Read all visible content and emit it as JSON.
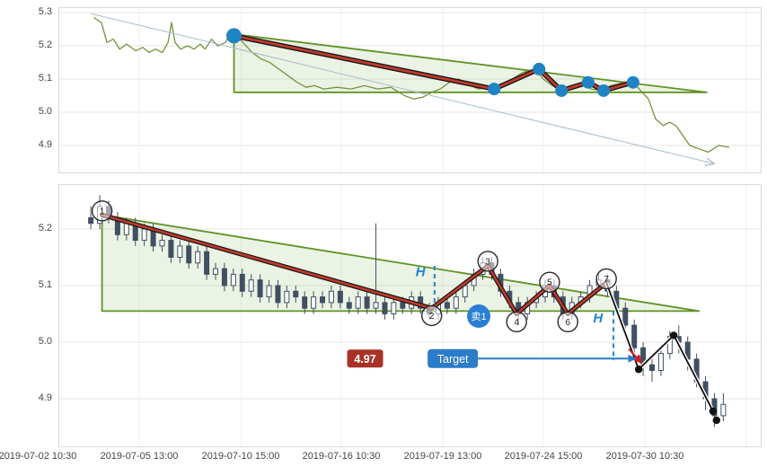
{
  "x_axis_labels": [
    "2019-07-02 10:30",
    "2019-07-05 13:00",
    "2019-07-10 15:00",
    "2019-07-16 10:30",
    "2019-07-19 13:00",
    "2019-07-24 15:00",
    "2019-07-30 10:30"
  ],
  "chart_data": [
    {
      "type": "line",
      "ylim": [
        4.82,
        5.31
      ],
      "yticks": [
        5.3,
        5.2,
        5.1,
        5.0,
        4.9
      ],
      "grid": true,
      "price_line": {
        "color": "#75933a",
        "points": [
          [
            0.049,
            5.285
          ],
          [
            0.06,
            5.27
          ],
          [
            0.068,
            5.21
          ],
          [
            0.077,
            5.22
          ],
          [
            0.086,
            5.19
          ],
          [
            0.096,
            5.205
          ],
          [
            0.109,
            5.185
          ],
          [
            0.119,
            5.195
          ],
          [
            0.128,
            5.18
          ],
          [
            0.137,
            5.19
          ],
          [
            0.147,
            5.18
          ],
          [
            0.155,
            5.21
          ],
          [
            0.16,
            5.27
          ],
          [
            0.165,
            5.21
          ],
          [
            0.173,
            5.19
          ],
          [
            0.183,
            5.2
          ],
          [
            0.192,
            5.19
          ],
          [
            0.201,
            5.205
          ],
          [
            0.208,
            5.19
          ],
          [
            0.217,
            5.22
          ],
          [
            0.226,
            5.2
          ],
          [
            0.237,
            5.21
          ],
          [
            0.244,
            5.24
          ],
          [
            0.252,
            5.23
          ],
          [
            0.262,
            5.21
          ],
          [
            0.275,
            5.18
          ],
          [
            0.288,
            5.16
          ],
          [
            0.3,
            5.15
          ],
          [
            0.313,
            5.13
          ],
          [
            0.326,
            5.11
          ],
          [
            0.339,
            5.09
          ],
          [
            0.352,
            5.075
          ],
          [
            0.364,
            5.08
          ],
          [
            0.377,
            5.07
          ],
          [
            0.396,
            5.075
          ],
          [
            0.416,
            5.07
          ],
          [
            0.435,
            5.08
          ],
          [
            0.454,
            5.07
          ],
          [
            0.473,
            5.075
          ],
          [
            0.492,
            5.05
          ],
          [
            0.505,
            5.04
          ],
          [
            0.518,
            5.045
          ],
          [
            0.531,
            5.06
          ],
          [
            0.543,
            5.07
          ],
          [
            0.556,
            5.09
          ],
          [
            0.569,
            5.1
          ],
          [
            0.582,
            5.085
          ],
          [
            0.597,
            5.07
          ],
          [
            0.614,
            5.075
          ],
          [
            0.63,
            5.08
          ],
          [
            0.646,
            5.1
          ],
          [
            0.661,
            5.12
          ],
          [
            0.678,
            5.13
          ],
          [
            0.69,
            5.1
          ],
          [
            0.703,
            5.08
          ],
          [
            0.716,
            5.065
          ],
          [
            0.729,
            5.08
          ],
          [
            0.746,
            5.09
          ],
          [
            0.758,
            5.07
          ],
          [
            0.771,
            5.065
          ],
          [
            0.786,
            5.08
          ],
          [
            0.806,
            5.09
          ],
          [
            0.818,
            5.09
          ],
          [
            0.831,
            5.06
          ],
          [
            0.84,
            5.04
          ],
          [
            0.85,
            4.98
          ],
          [
            0.861,
            4.96
          ],
          [
            0.87,
            4.97
          ],
          [
            0.879,
            4.96
          ],
          [
            0.889,
            4.93
          ],
          [
            0.899,
            4.9
          ],
          [
            0.912,
            4.89
          ],
          [
            0.925,
            4.88
          ],
          [
            0.94,
            4.9
          ],
          [
            0.955,
            4.895
          ]
        ]
      },
      "descending_triangle": {
        "stroke": "#5f9326",
        "fill": "rgba(130,180,90,0.16)",
        "points": [
          [
            0.249,
            5.235
          ],
          [
            0.923,
            5.06
          ],
          [
            0.249,
            5.06
          ]
        ]
      },
      "trend_arrow": {
        "color": "#a5bccd",
        "from": [
          0.045,
          5.297
        ],
        "to": [
          0.934,
          4.845
        ]
      },
      "zigzag": {
        "color": "#bf3a2b",
        "outline": "#151515",
        "dot_color": "#1f83c4",
        "points": [
          [
            0.249,
            5.23
          ],
          [
            0.62,
            5.07
          ],
          [
            0.684,
            5.13
          ],
          [
            0.716,
            5.065
          ],
          [
            0.754,
            5.09
          ],
          [
            0.776,
            5.065
          ],
          [
            0.818,
            5.09
          ]
        ]
      }
    },
    {
      "type": "candlestick",
      "ylim": [
        4.82,
        5.28
      ],
      "yticks": [
        5.2,
        5.1,
        5.0,
        4.9
      ],
      "grid": true,
      "candle_up_color": "#ffffff",
      "candle_down_color": "#414f63",
      "candle_stroke": "#414f63",
      "candles": {
        "x_start": 0.045,
        "x_step": 0.0127,
        "ohlc": [
          [
            5.22,
            5.24,
            5.2,
            5.21
          ],
          [
            5.21,
            5.26,
            5.2,
            5.24
          ],
          [
            5.24,
            5.25,
            5.21,
            5.22
          ],
          [
            5.22,
            5.23,
            5.18,
            5.19
          ],
          [
            5.19,
            5.22,
            5.18,
            5.21
          ],
          [
            5.21,
            5.22,
            5.17,
            5.18
          ],
          [
            5.18,
            5.21,
            5.17,
            5.2
          ],
          [
            5.2,
            5.21,
            5.16,
            5.17
          ],
          [
            5.17,
            5.19,
            5.16,
            5.18
          ],
          [
            5.18,
            5.19,
            5.14,
            5.15
          ],
          [
            5.15,
            5.18,
            5.14,
            5.17
          ],
          [
            5.17,
            5.18,
            5.13,
            5.14
          ],
          [
            5.14,
            5.17,
            5.13,
            5.16
          ],
          [
            5.16,
            5.17,
            5.11,
            5.12
          ],
          [
            5.12,
            5.14,
            5.11,
            5.13
          ],
          [
            5.13,
            5.14,
            5.09,
            5.1
          ],
          [
            5.1,
            5.13,
            5.09,
            5.12
          ],
          [
            5.12,
            5.13,
            5.08,
            5.09
          ],
          [
            5.09,
            5.12,
            5.08,
            5.11
          ],
          [
            5.11,
            5.12,
            5.07,
            5.08
          ],
          [
            5.08,
            5.11,
            5.07,
            5.1
          ],
          [
            5.1,
            5.11,
            5.06,
            5.07
          ],
          [
            5.07,
            5.1,
            5.06,
            5.09
          ],
          [
            5.09,
            5.1,
            5.07,
            5.08
          ],
          [
            5.08,
            5.09,
            5.05,
            5.06
          ],
          [
            5.06,
            5.09,
            5.05,
            5.08
          ],
          [
            5.08,
            5.09,
            5.06,
            5.07
          ],
          [
            5.07,
            5.1,
            5.06,
            5.09
          ],
          [
            5.09,
            5.1,
            5.06,
            5.07
          ],
          [
            5.07,
            5.08,
            5.05,
            5.06
          ],
          [
            5.06,
            5.09,
            5.05,
            5.08
          ],
          [
            5.08,
            5.09,
            5.05,
            5.06
          ],
          [
            5.06,
            5.21,
            5.05,
            5.07
          ],
          [
            5.07,
            5.08,
            5.04,
            5.05
          ],
          [
            5.05,
            5.08,
            5.04,
            5.07
          ],
          [
            5.07,
            5.08,
            5.05,
            5.06
          ],
          [
            5.06,
            5.09,
            5.05,
            5.08
          ],
          [
            5.08,
            5.09,
            5.05,
            5.06
          ],
          [
            5.06,
            5.07,
            5.04,
            5.05
          ],
          [
            5.05,
            5.08,
            5.04,
            5.07
          ],
          [
            5.07,
            5.08,
            5.05,
            5.06
          ],
          [
            5.06,
            5.09,
            5.05,
            5.08
          ],
          [
            5.08,
            5.11,
            5.07,
            5.1
          ],
          [
            5.1,
            5.13,
            5.09,
            5.12
          ],
          [
            5.12,
            5.15,
            5.11,
            5.14
          ],
          [
            5.14,
            5.15,
            5.11,
            5.12
          ],
          [
            5.12,
            5.13,
            5.08,
            5.09
          ],
          [
            5.09,
            5.1,
            5.06,
            5.07
          ],
          [
            5.07,
            5.08,
            5.03,
            5.05
          ],
          [
            5.05,
            5.08,
            5.04,
            5.07
          ],
          [
            5.07,
            5.09,
            5.06,
            5.08
          ],
          [
            5.08,
            5.11,
            5.07,
            5.1
          ],
          [
            5.1,
            5.11,
            5.07,
            5.08
          ],
          [
            5.08,
            5.09,
            5.04,
            5.05
          ],
          [
            5.05,
            5.08,
            5.04,
            5.07
          ],
          [
            5.07,
            5.09,
            5.06,
            5.08
          ],
          [
            5.08,
            5.11,
            5.07,
            5.1
          ],
          [
            5.1,
            5.12,
            5.09,
            5.11
          ],
          [
            5.11,
            5.12,
            5.08,
            5.09
          ],
          [
            5.09,
            5.1,
            5.05,
            5.06
          ],
          [
            5.06,
            5.07,
            5.02,
            5.03
          ],
          [
            5.03,
            5.04,
            4.98,
            4.99
          ],
          [
            4.99,
            5.0,
            4.94,
            4.96
          ],
          [
            4.96,
            4.98,
            4.93,
            4.95
          ],
          [
            4.95,
            4.99,
            4.94,
            4.98
          ],
          [
            4.98,
            5.02,
            4.97,
            5.01
          ],
          [
            5.01,
            5.03,
            4.98,
            5.0
          ],
          [
            5.0,
            5.01,
            4.95,
            4.97
          ],
          [
            4.97,
            4.98,
            4.92,
            4.93
          ],
          [
            4.93,
            4.94,
            4.88,
            4.9
          ],
          [
            4.9,
            4.91,
            4.85,
            4.87
          ],
          [
            4.87,
            4.91,
            4.86,
            4.89
          ]
        ]
      },
      "descending_triangle": {
        "stroke": "#5f9326",
        "fill": "rgba(130,180,90,0.16)",
        "points": [
          [
            0.061,
            5.225
          ],
          [
            0.912,
            5.055
          ],
          [
            0.061,
            5.055
          ]
        ]
      },
      "zigzag": {
        "color": "#bf3a2b",
        "outline": "#151515",
        "pivots": [
          {
            "n": "1",
            "x": 0.061,
            "price": 5.225,
            "circle_price": 5.232
          },
          {
            "n": "2",
            "x": 0.531,
            "price": 5.06,
            "circle_price": 5.047
          },
          {
            "n": "3",
            "x": 0.611,
            "price": 5.135,
            "circle_price": 5.143
          },
          {
            "n": "4",
            "x": 0.652,
            "price": 5.05,
            "circle_price": 5.036
          },
          {
            "n": "5",
            "x": 0.699,
            "price": 5.1,
            "circle_price": 5.106
          },
          {
            "n": "6",
            "x": 0.725,
            "price": 5.05,
            "circle_price": 5.036
          },
          {
            "n": "7",
            "x": 0.78,
            "price": 5.105,
            "circle_price": 5.112
          }
        ]
      },
      "tail_line": {
        "color": "#111111",
        "outline": "#ffffff",
        "points": [
          [
            0.78,
            5.105
          ],
          [
            0.826,
            4.952
          ],
          [
            0.876,
            5.012
          ],
          [
            0.932,
            4.878
          ]
        ],
        "dots": [
          [
            0.826,
            4.952
          ],
          [
            0.876,
            5.012
          ],
          [
            0.932,
            4.878
          ],
          [
            0.937,
            4.862
          ]
        ]
      },
      "h_markers": [
        {
          "label": "H",
          "x": 0.535,
          "price_top": 5.135,
          "price_bottom": 5.058,
          "label_x": 0.515,
          "label_price": 5.125
        },
        {
          "label": "H",
          "x": 0.79,
          "price_top": 5.055,
          "price_bottom": 4.968,
          "label_x": 0.768,
          "label_price": 5.043
        }
      ],
      "sell_badge": {
        "label": "卖1",
        "x": 0.598,
        "price": 5.046,
        "color": "#2a7fd4"
      },
      "price_badge": {
        "label": "4.97",
        "x": 0.436,
        "price": 4.971,
        "color": "#a93226"
      },
      "target_badge": {
        "label": "Target",
        "x": 0.561,
        "price": 4.971,
        "color": "#2b7cc9",
        "arrow_end_x": 0.822
      },
      "red_arrow": {
        "color": "#d02020",
        "from": [
          0.812,
          4.988
        ],
        "to": [
          0.83,
          4.963
        ]
      }
    }
  ]
}
